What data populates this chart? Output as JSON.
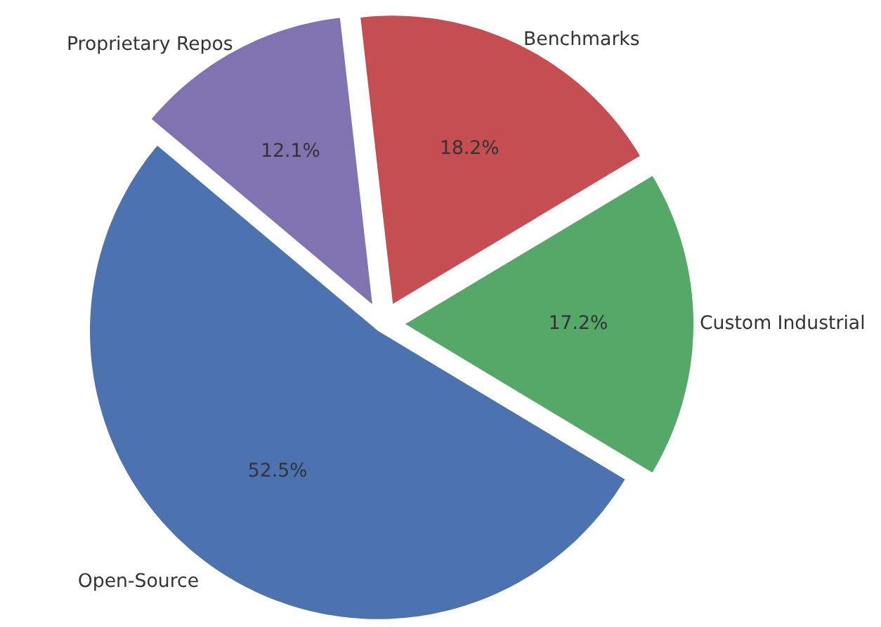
{
  "chart_data": {
    "type": "pie",
    "categories": [
      "Open-Source",
      "Custom Industrial",
      "Benchmarks",
      "Proprietary Repos"
    ],
    "values": [
      52.5,
      17.2,
      18.2,
      12.1
    ],
    "colors": [
      "#4c72b0",
      "#55a868",
      "#c44e52",
      "#8172b2"
    ],
    "value_labels": [
      "52.5%",
      "17.2%",
      "18.2%",
      "12.1%"
    ]
  }
}
